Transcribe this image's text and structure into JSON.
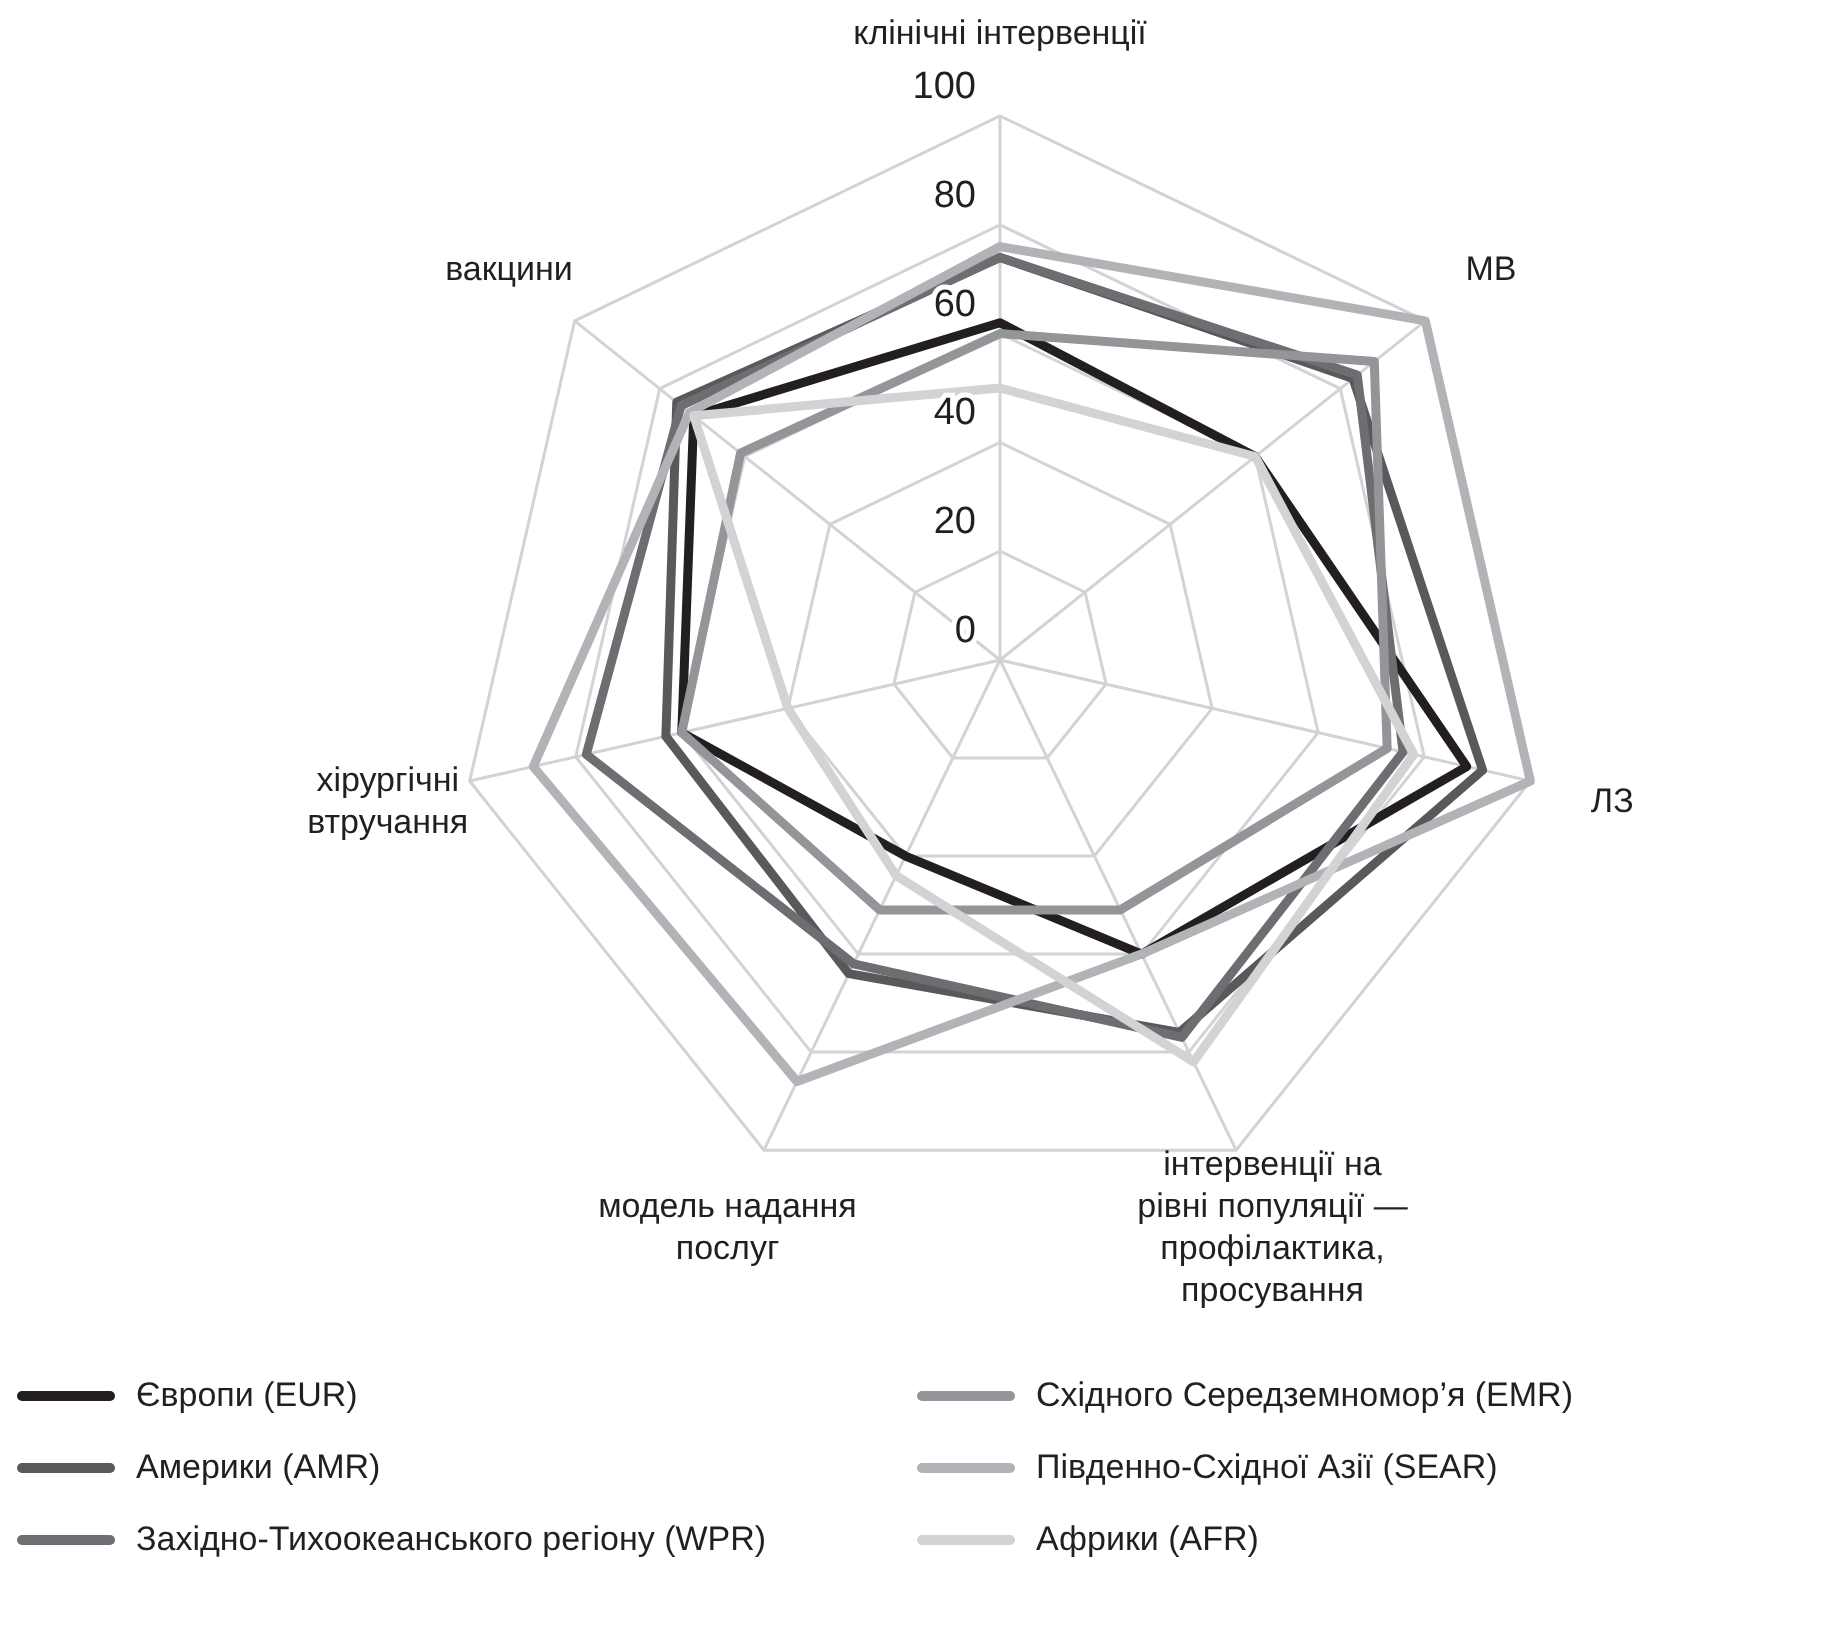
{
  "chart_data": {
    "type": "radar",
    "categories": [
      "клінічні інтервенції",
      "МВ",
      "ЛЗ",
      "інтервенції на рівні популяції — профілактика, просування",
      "модель надання послуг",
      "хірургічні втручання",
      "вакцини"
    ],
    "ylim": [
      0,
      100
    ],
    "yticks": [
      0,
      20,
      40,
      60,
      80,
      100
    ],
    "grid": true,
    "legend": "bottom",
    "series": [
      {
        "name": "Європи (EUR)",
        "color": "#231f20",
        "values": [
          62,
          60,
          88,
          60,
          40,
          60,
          72
        ]
      },
      {
        "name": "Америки (AMR)",
        "color": "#58595b",
        "values": [
          74,
          83,
          91,
          76,
          64,
          63,
          76
        ]
      },
      {
        "name": "Західно-Тихоокеанського регіону (WPR)",
        "color": "#6d6e71",
        "values": [
          74,
          84,
          76,
          77,
          62,
          78,
          75
        ]
      },
      {
        "name": "Східного Середземномор’я (EMR)",
        "color": "#939598",
        "values": [
          60,
          88,
          73,
          51,
          51,
          60,
          61
        ]
      },
      {
        "name": "Південно-Східної Азії (SEAR)",
        "color": "#b1b3b6",
        "values": [
          76,
          100,
          100,
          60,
          86,
          88,
          73
        ]
      },
      {
        "name": "Африки (AFR)",
        "color": "#d1d3d4",
        "values": [
          50,
          60,
          78,
          82,
          44,
          40,
          72
        ]
      }
    ]
  }
}
